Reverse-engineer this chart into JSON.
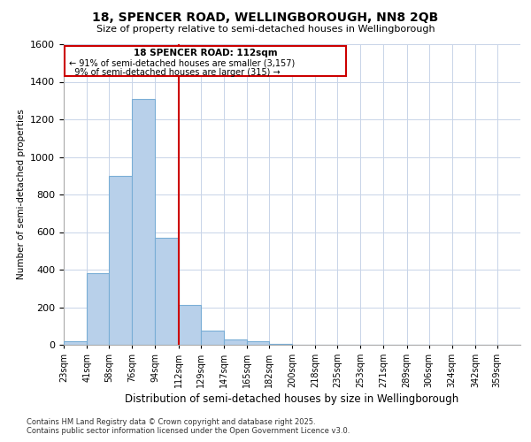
{
  "title_line1": "18, SPENCER ROAD, WELLINGBOROUGH, NN8 2QB",
  "title_line2": "Size of property relative to semi-detached houses in Wellingborough",
  "xlabel": "Distribution of semi-detached houses by size in Wellingborough",
  "ylabel": "Number of semi-detached properties",
  "footer_line1": "Contains HM Land Registry data © Crown copyright and database right 2025.",
  "footer_line2": "Contains public sector information licensed under the Open Government Licence v3.0.",
  "annotation_title": "18 SPENCER ROAD: 112sqm",
  "annotation_line1": "← 91% of semi-detached houses are smaller (3,157)",
  "annotation_line2": "  9% of semi-detached houses are larger (315) →",
  "subject_value": 112,
  "bin_edges": [
    23,
    41,
    58,
    76,
    94,
    112,
    129,
    147,
    165,
    182,
    200,
    218,
    235,
    253,
    271,
    289,
    306,
    324,
    342,
    359,
    377
  ],
  "bin_counts": [
    20,
    380,
    900,
    1310,
    570,
    210,
    75,
    30,
    20,
    5,
    0,
    0,
    0,
    0,
    0,
    0,
    0,
    0,
    0,
    0
  ],
  "bar_color": "#b8d0ea",
  "bar_edge_color": "#7aaed6",
  "subject_line_color": "#cc0000",
  "annotation_box_color": "#cc0000",
  "grid_color": "#c8d4e8",
  "plot_bg_color": "#ffffff",
  "fig_bg_color": "#ffffff",
  "ylim": [
    0,
    1600
  ],
  "yticks": [
    0,
    200,
    400,
    600,
    800,
    1000,
    1200,
    1400,
    1600
  ]
}
